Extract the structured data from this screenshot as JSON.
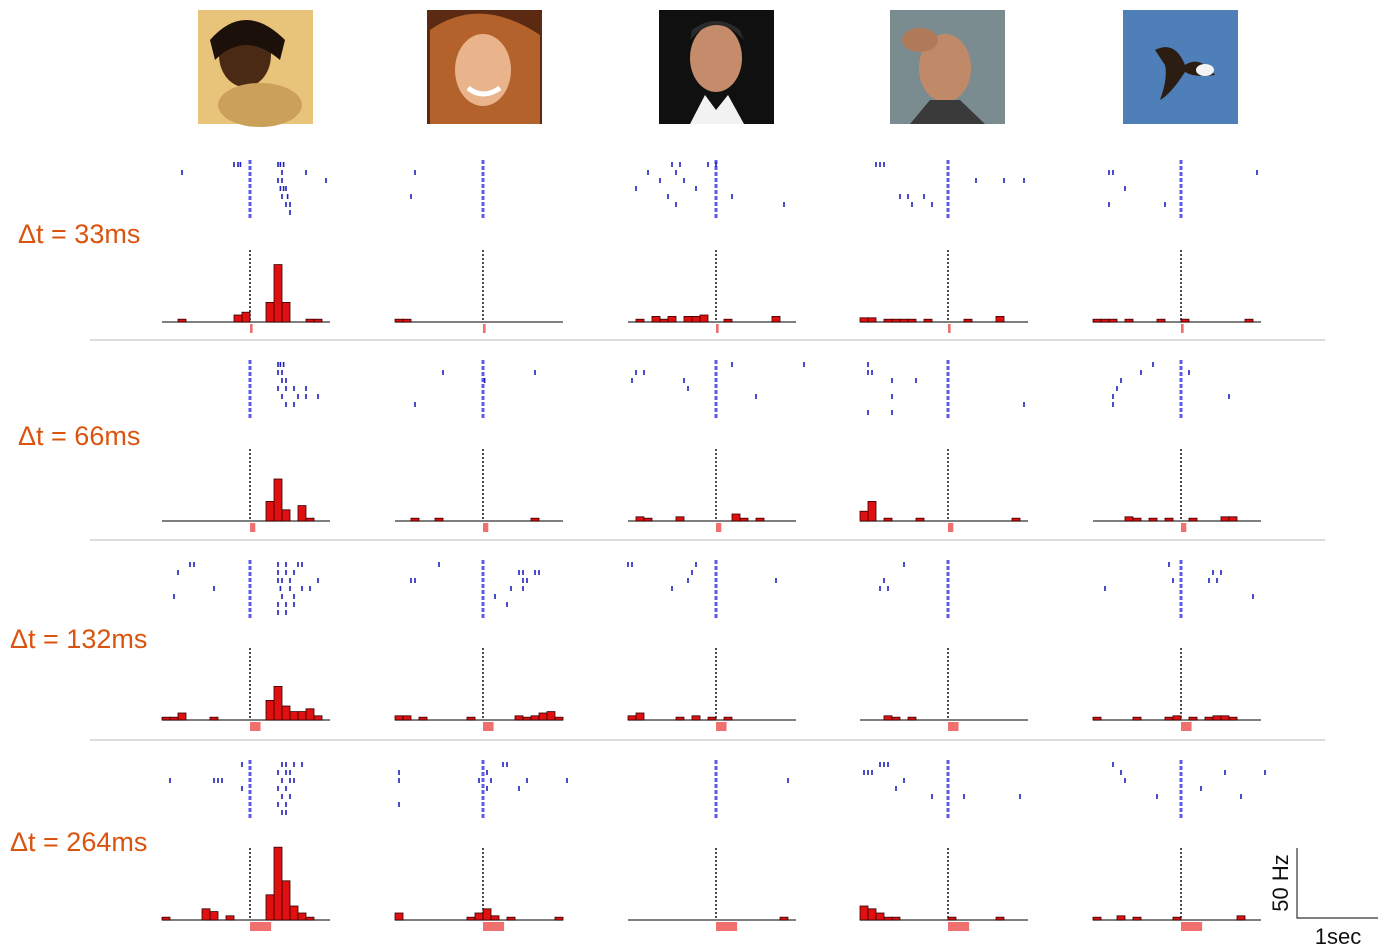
{
  "figure": {
    "xlim": [
      -1.1,
      1.0
    ],
    "scale": {
      "hz": {
        "value": 50,
        "label": "50 Hz"
      },
      "sec": {
        "value": 1,
        "label": "1sec"
      }
    },
    "rows": [
      {
        "label": "Δt = 33ms",
        "stimulus": 0.033,
        "panels": [
          {
            "hist": [
              0,
              0,
              2,
              0,
              0,
              0,
              0,
              0,
              0,
              5,
              7,
              0,
              0,
              14,
              41,
              14,
              0,
              0,
              2,
              2,
              0
            ],
            "raster": [
              [
                -0.2,
                -0.15,
                -0.12,
                0.35,
                0.38,
                0.42
              ],
              [
                -0.85,
                0.4,
                0.7
              ],
              [
                0.35,
                0.4,
                0.95
              ],
              [
                0.38,
                0.42,
                0.45
              ],
              [
                0.4,
                0.47
              ],
              [
                0.45,
                0.5
              ],
              [
                0.5
              ]
            ]
          },
          {
            "hist": [
              2,
              2,
              0,
              0,
              0,
              0,
              0,
              0,
              0,
              0,
              0,
              0,
              0,
              0,
              0,
              0,
              0,
              0,
              0,
              0,
              0
            ],
            "raster": [
              [],
              [
                -0.85
              ],
              [],
              [],
              [
                -0.9
              ],
              [],
              []
            ]
          },
          {
            "hist": [
              0,
              2,
              0,
              4,
              2,
              4,
              0,
              4,
              4,
              5,
              0,
              0,
              2,
              0,
              0,
              0,
              0,
              0,
              4,
              0,
              0
            ],
            "raster": [
              [
                -0.55,
                -0.45,
                -0.1,
                0.0
              ],
              [
                -0.85,
                -0.5
              ],
              [
                -0.7,
                -0.4
              ],
              [
                -1.0,
                -0.25
              ],
              [
                -0.6,
                0.2
              ],
              [
                -0.5,
                0.85
              ],
              []
            ]
          },
          {
            "hist": [
              3,
              3,
              0,
              2,
              2,
              2,
              2,
              0,
              2,
              0,
              0,
              0,
              0,
              2,
              0,
              0,
              0,
              4,
              0,
              0,
              0
            ],
            "raster": [
              [
                -0.9,
                -0.85,
                -0.8
              ],
              [],
              [
                0.35,
                0.7,
                0.95
              ],
              [],
              [
                -0.6,
                -0.5,
                -0.3
              ],
              [
                -0.45,
                -0.2
              ],
              []
            ]
          },
          {
            "hist": [
              2,
              2,
              2,
              0,
              2,
              0,
              0,
              0,
              2,
              0,
              0,
              2,
              0,
              0,
              0,
              0,
              0,
              0,
              0,
              2,
              0
            ],
            "raster": [
              [],
              [
                -0.9,
                -0.85,
                0.95
              ],
              [],
              [
                -0.7
              ],
              [],
              [
                -0.9,
                -0.2
              ],
              []
            ]
          }
        ]
      },
      {
        "label": "Δt = 66ms",
        "stimulus": 0.066,
        "panels": [
          {
            "hist": [
              0,
              0,
              0,
              0,
              0,
              0,
              0,
              0,
              0,
              0,
              0,
              0,
              0,
              14,
              30,
              8,
              0,
              11,
              2,
              0,
              0
            ],
            "raster": [
              [
                0.35,
                0.38,
                0.42
              ],
              [
                0.35,
                0.4
              ],
              [
                0.4,
                0.45
              ],
              [
                0.35,
                0.45,
                0.55,
                0.7
              ],
              [
                0.4,
                0.6,
                0.7,
                0.85
              ],
              [
                0.45,
                0.55
              ],
              []
            ]
          },
          {
            "hist": [
              0,
              0,
              2,
              0,
              0,
              2,
              0,
              0,
              0,
              0,
              0,
              0,
              0,
              0,
              0,
              0,
              0,
              2,
              0,
              0,
              0
            ],
            "raster": [
              [],
              [
                -0.5,
                0.65
              ],
              [
                0.02
              ],
              [],
              [],
              [
                -0.85
              ],
              []
            ]
          },
          {
            "hist": [
              0,
              3,
              2,
              0,
              0,
              0,
              3,
              0,
              0,
              0,
              0,
              0,
              0,
              5,
              2,
              0,
              2,
              0,
              0,
              0,
              0
            ],
            "raster": [
              [
                0.2,
                1.1
              ],
              [
                -1.0,
                -0.9
              ],
              [
                -1.05,
                -0.4
              ],
              [
                -0.35
              ],
              [
                0.5
              ],
              [],
              []
            ]
          },
          {
            "hist": [
              7,
              14,
              0,
              2,
              0,
              0,
              0,
              2,
              0,
              0,
              0,
              0,
              0,
              0,
              0,
              0,
              0,
              0,
              0,
              2,
              0
            ],
            "raster": [
              [
                -1.0
              ],
              [
                -1.0,
                -0.95
              ],
              [
                -0.7,
                -0.4
              ],
              [],
              [
                -0.7
              ],
              [
                0.95
              ],
              [
                -1.0,
                -0.7
              ]
            ]
          },
          {
            "hist": [
              0,
              0,
              0,
              0,
              3,
              2,
              0,
              2,
              0,
              2,
              0,
              0,
              2,
              0,
              0,
              0,
              3,
              3,
              0,
              0,
              0
            ],
            "raster": [
              [
                -0.35
              ],
              [
                -0.5,
                0.1
              ],
              [
                -0.75
              ],
              [
                -0.8
              ],
              [
                -0.85,
                0.6
              ],
              [
                -0.85
              ],
              []
            ]
          }
        ]
      },
      {
        "label": "Δt = 132ms",
        "stimulus": 0.132,
        "panels": [
          {
            "hist": [
              2,
              2,
              5,
              0,
              0,
              0,
              2,
              0,
              0,
              0,
              0,
              0,
              0,
              14,
              24,
              10,
              6,
              6,
              8,
              3,
              0
            ],
            "raster": [
              [
                -0.75,
                -0.7,
                0.35,
                0.45,
                0.6,
                0.65
              ],
              [
                -0.9,
                0.35,
                0.45,
                0.55
              ],
              [
                0.35,
                0.4,
                0.5,
                0.85
              ],
              [
                -0.45,
                0.38,
                0.5,
                0.65,
                0.75
              ],
              [
                -0.95,
                0.4,
                0.55
              ],
              [
                0.35,
                0.45,
                0.55
              ],
              [
                0.35,
                0.45
              ]
            ]
          },
          {
            "hist": [
              3,
              3,
              0,
              2,
              0,
              0,
              0,
              0,
              0,
              2,
              0,
              0,
              0,
              0,
              0,
              3,
              2,
              3,
              5,
              6,
              2
            ],
            "raster": [
              [
                -0.55
              ],
              [
                0.45,
                0.5,
                0.65,
                0.7
              ],
              [
                -0.9,
                -0.85,
                0.5,
                0.55
              ],
              [
                0.35,
                0.5
              ],
              [
                0.15
              ],
              [
                0.3
              ],
              []
            ]
          },
          {
            "hist": [
              3,
              5,
              0,
              0,
              0,
              0,
              2,
              0,
              3,
              0,
              2,
              0,
              2,
              0,
              0,
              0,
              0,
              0,
              0,
              0,
              0
            ],
            "raster": [
              [
                -1.1,
                -1.05,
                -0.25
              ],
              [
                -0.3
              ],
              [
                -0.35,
                0.75
              ],
              [
                -0.55
              ],
              [],
              [],
              []
            ]
          },
          {
            "hist": [
              0,
              0,
              0,
              3,
              2,
              0,
              2,
              0,
              0,
              0,
              0,
              0,
              0,
              0,
              0,
              0,
              0,
              0,
              0,
              0,
              0
            ],
            "raster": [
              [
                -0.55
              ],
              [],
              [
                -0.8
              ],
              [
                -0.85,
                -0.75
              ],
              [],
              [],
              []
            ]
          },
          {
            "hist": [
              2,
              0,
              0,
              0,
              0,
              2,
              0,
              0,
              0,
              2,
              3,
              0,
              2,
              0,
              2,
              3,
              3,
              2,
              0,
              0,
              0
            ],
            "raster": [
              [
                -0.15
              ],
              [
                0.4,
                0.5
              ],
              [
                -0.1,
                0.35,
                0.45
              ],
              [
                -0.95
              ],
              [
                0.9
              ],
              [],
              []
            ]
          }
        ]
      },
      {
        "label": "Δt = 264ms",
        "stimulus": 0.264,
        "panels": [
          {
            "hist": [
              2,
              0,
              0,
              0,
              0,
              8,
              6,
              0,
              3,
              0,
              0,
              0,
              0,
              18,
              52,
              28,
              10,
              5,
              2,
              0,
              0
            ],
            "raster": [
              [
                -0.1,
                0.4,
                0.45,
                0.55,
                0.65
              ],
              [
                0.35,
                0.45,
                0.5
              ],
              [
                -1.0,
                -0.45,
                -0.4,
                -0.35,
                0.4,
                0.5,
                0.55
              ],
              [
                -0.1,
                0.35,
                0.45
              ],
              [
                0.4,
                0.5
              ],
              [
                0.35,
                0.45
              ],
              [
                0.4,
                0.45
              ]
            ]
          },
          {
            "hist": [
              5,
              0,
              0,
              0,
              0,
              0,
              0,
              0,
              0,
              2,
              5,
              8,
              3,
              0,
              2,
              0,
              0,
              0,
              0,
              0,
              2
            ],
            "raster": [
              [
                0.25,
                0.3
              ],
              [
                -1.05,
                0.05
              ],
              [
                -1.05,
                -0.05,
                0.1,
                0.55,
                1.05
              ],
              [
                0.05,
                0.45
              ],
              [],
              [
                -1.05
              ],
              []
            ]
          },
          {
            "hist": [
              0,
              0,
              0,
              0,
              0,
              0,
              0,
              0,
              0,
              0,
              0,
              0,
              0,
              0,
              0,
              0,
              0,
              0,
              0,
              2,
              0
            ],
            "raster": [
              [],
              [],
              [
                0.9
              ],
              [],
              [],
              [],
              []
            ]
          },
          {
            "hist": [
              10,
              8,
              5,
              2,
              2,
              0,
              0,
              0,
              0,
              0,
              0,
              2,
              0,
              0,
              0,
              0,
              0,
              2,
              0,
              0,
              0
            ],
            "raster": [
              [
                -0.85,
                -0.8,
                -0.75
              ],
              [
                -1.05,
                -1.0,
                -0.95
              ],
              [
                -0.55
              ],
              [
                -0.65
              ],
              [
                -0.2,
                0.2,
                0.9
              ],
              [],
              []
            ]
          },
          {
            "hist": [
              2,
              0,
              0,
              3,
              0,
              2,
              0,
              0,
              0,
              0,
              2,
              0,
              0,
              0,
              0,
              0,
              0,
              0,
              3,
              0,
              0
            ],
            "raster": [
              [
                -0.85
              ],
              [
                -0.75,
                0.55,
                1.05
              ],
              [
                -0.7
              ],
              [
                0.25
              ],
              [
                -0.3,
                0.75
              ],
              [],
              []
            ]
          }
        ]
      }
    ]
  }
}
